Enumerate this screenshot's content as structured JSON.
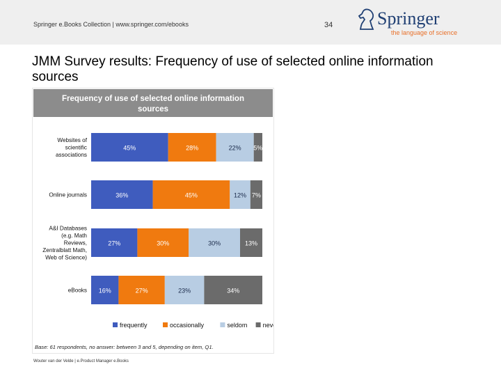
{
  "header": {
    "collection_text": "Springer e.Books Collection | www.springer.com/ebooks",
    "page_number": "34"
  },
  "logo": {
    "word": "Springer",
    "tagline": "the language of science"
  },
  "slide": {
    "title": "JMM Survey results: Frequency of use of selected online information sources"
  },
  "footer": {
    "text": "Wouter van der Velde | e.Product Manager e.Books"
  },
  "colors": {
    "header_band": "#efefef",
    "frequently": "#3f5cbe",
    "occasionally": "#f07a0f",
    "seldom": "#b8cde3",
    "never": "#6b6b6b"
  },
  "chart_data": {
    "type": "bar",
    "orientation": "horizontal",
    "stacked": true,
    "title": "Frequency of use of selected online information sources",
    "categories": [
      "Websites of scientific associations",
      "Online journals",
      "A&I Databases (e.g. Math Reviews, Zentralblatt Math, Web of Science)",
      "eBooks"
    ],
    "series": [
      {
        "name": "frequently",
        "values": [
          45,
          36,
          27,
          16
        ],
        "labels": [
          "45%",
          "36%",
          "27%",
          "16%"
        ]
      },
      {
        "name": "occasionally",
        "values": [
          28,
          45,
          30,
          27
        ],
        "labels": [
          "28%",
          "45%",
          "30%",
          "27%"
        ]
      },
      {
        "name": "seldom",
        "values": [
          22,
          12,
          30,
          23
        ],
        "labels": [
          "22%",
          "12%",
          "30%",
          "23%"
        ]
      },
      {
        "name": "never",
        "values": [
          5,
          7,
          13,
          34
        ],
        "labels": [
          "5%",
          "7%",
          "13%",
          "34%"
        ]
      }
    ],
    "legend_position": "bottom",
    "grid": false,
    "note": "Base: 61 respondents, no answer: between 3 and 5, depending on item, Q1."
  }
}
